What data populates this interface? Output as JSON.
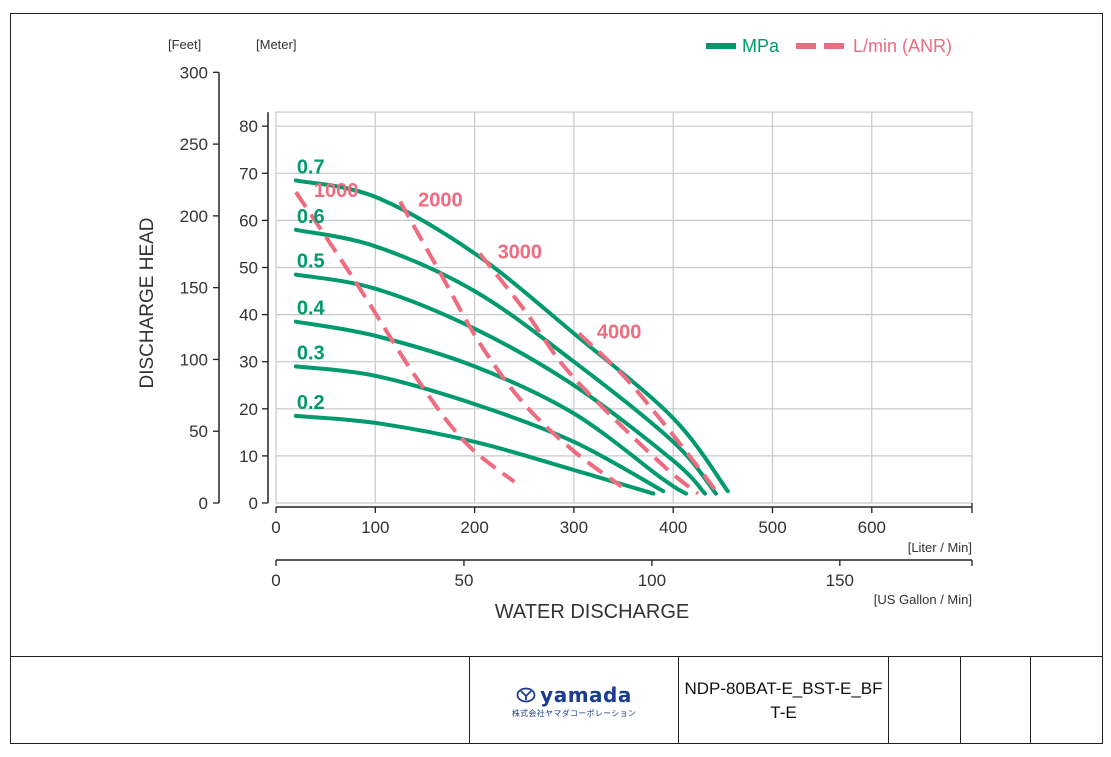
{
  "chart_data": {
    "type": "line",
    "ylabel": "DISCHARGE HEAD",
    "xlabel": "WATER DISCHARGE",
    "y_unit_feet": "[Feet]",
    "y_unit_meter": "[Meter]",
    "x_unit_liter": "[Liter / Min]",
    "x_unit_gallon": "[US Gallon / Min]",
    "feet_ticks": [
      "0",
      "50",
      "100",
      "150",
      "200",
      "250",
      "300"
    ],
    "meter_ticks": [
      "0",
      "10",
      "20",
      "30",
      "40",
      "50",
      "60",
      "70",
      "80"
    ],
    "liter_ticks": [
      "0",
      "100",
      "200",
      "300",
      "400",
      "500",
      "600"
    ],
    "gallon_ticks": [
      "0",
      "50",
      "100",
      "150"
    ],
    "xlim": [
      0,
      700
    ],
    "ylim": [
      0,
      83
    ],
    "legend": {
      "placement": "top-right",
      "entries": [
        {
          "label": "MPa",
          "style": "solid",
          "color": "#009a6e"
        },
        {
          "label": "L/min (ANR)",
          "style": "dashed",
          "color": "#ee6b80"
        }
      ]
    },
    "pressure_series": [
      {
        "name": "0.7",
        "points": [
          [
            20,
            68.5
          ],
          [
            100,
            65
          ],
          [
            200,
            53
          ],
          [
            300,
            36
          ],
          [
            400,
            18
          ],
          [
            455,
            2.5
          ]
        ]
      },
      {
        "name": "0.6",
        "points": [
          [
            20,
            58
          ],
          [
            100,
            54.5
          ],
          [
            200,
            45
          ],
          [
            300,
            30
          ],
          [
            400,
            13
          ],
          [
            443,
            2
          ]
        ]
      },
      {
        "name": "0.5",
        "points": [
          [
            20,
            48.5
          ],
          [
            100,
            45.5
          ],
          [
            200,
            37
          ],
          [
            300,
            25
          ],
          [
            400,
            9
          ],
          [
            432,
            2
          ]
        ]
      },
      {
        "name": "0.4",
        "points": [
          [
            20,
            38.5
          ],
          [
            100,
            35.5
          ],
          [
            200,
            29
          ],
          [
            300,
            19
          ],
          [
            390,
            5
          ],
          [
            413,
            2
          ]
        ]
      },
      {
        "name": "0.3",
        "points": [
          [
            20,
            29
          ],
          [
            100,
            27
          ],
          [
            200,
            21
          ],
          [
            300,
            13
          ],
          [
            390,
            2.5
          ]
        ]
      },
      {
        "name": "0.2",
        "points": [
          [
            20,
            18.5
          ],
          [
            100,
            17
          ],
          [
            200,
            13
          ],
          [
            300,
            7
          ],
          [
            380,
            2
          ]
        ]
      }
    ],
    "air_series": [
      {
        "name": "1000",
        "points": [
          [
            20,
            66
          ],
          [
            80,
            47
          ],
          [
            140,
            27
          ],
          [
            190,
            13
          ],
          [
            240,
            4.5
          ]
        ]
      },
      {
        "name": "2000",
        "points": [
          [
            125,
            64
          ],
          [
            165,
            49
          ],
          [
            205,
            34
          ],
          [
            250,
            21
          ],
          [
            300,
            11
          ],
          [
            348,
            3.5
          ]
        ]
      },
      {
        "name": "3000",
        "points": [
          [
            205,
            53
          ],
          [
            250,
            41
          ],
          [
            290,
            29
          ],
          [
            340,
            18
          ],
          [
            395,
            7
          ],
          [
            425,
            2
          ]
        ]
      },
      {
        "name": "4000",
        "points": [
          [
            305,
            36
          ],
          [
            350,
            27
          ],
          [
            390,
            17
          ],
          [
            420,
            9
          ],
          [
            445,
            2
          ]
        ]
      }
    ],
    "colors": {
      "pressure": "#009a6e",
      "air": "#ee6b80",
      "grid": "#c8c8c8",
      "axis": "#222222"
    }
  },
  "footer": {
    "logo_name": "yamada",
    "logo_sub": "株式会社ヤマダコーポレーション",
    "model": "NDP-80BAT-E_BST-E_BFT-E"
  }
}
